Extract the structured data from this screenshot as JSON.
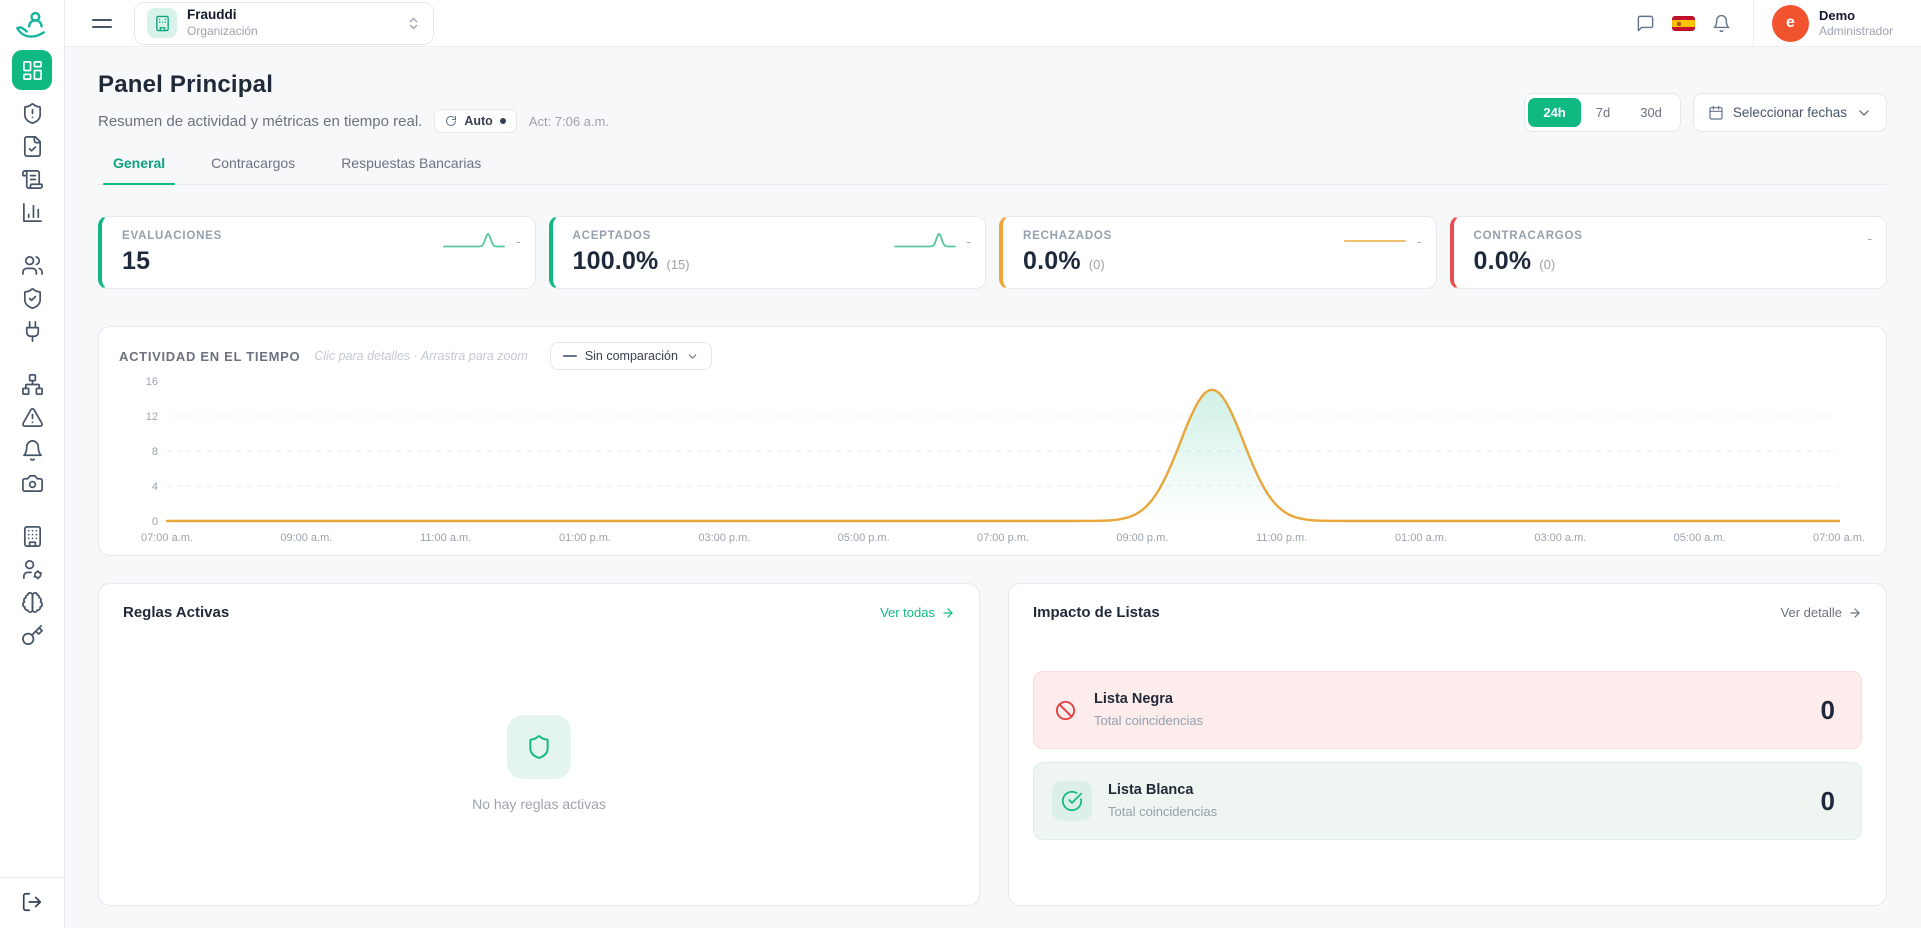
{
  "topbar": {
    "org_name": "Frauddi",
    "org_type": "Organización",
    "user_name": "Demo",
    "user_role": "Administrador",
    "avatar_letter": "e"
  },
  "sidebar": {
    "items": [
      "dashboard",
      "shield-alert",
      "file-check",
      "scroll-rules",
      "bar-chart",
      "users",
      "shield-check",
      "plug",
      "sitemap",
      "alert-triangle",
      "bell",
      "camera",
      "building",
      "user-gear",
      "brain",
      "key"
    ],
    "bottom": "logout"
  },
  "header": {
    "title": "Panel Principal",
    "subtitle": "Resumen de actividad y métricas en tiempo real.",
    "auto_label": "Auto",
    "updated_label": "Act: 7:06 a.m.",
    "ranges": [
      {
        "label": "24h",
        "active": true
      },
      {
        "label": "7d",
        "active": false
      },
      {
        "label": "30d",
        "active": false
      }
    ],
    "date_picker_label": "Seleccionar fechas"
  },
  "tabs": [
    {
      "label": "General",
      "active": true
    },
    {
      "label": "Contracargos",
      "active": false
    },
    {
      "label": "Respuestas Bancarias",
      "active": false
    }
  ],
  "metrics": [
    {
      "label": "EVALUACIONES",
      "value": "15",
      "sub": "",
      "trend": "-",
      "accent": "#10b981",
      "spark": "spike",
      "spark_color": "#57c69e"
    },
    {
      "label": "ACEPTADOS",
      "value": "100.0%",
      "sub": "(15)",
      "trend": "-",
      "accent": "#10b981",
      "spark": "spike",
      "spark_color": "#57c69e"
    },
    {
      "label": "RECHAZADOS",
      "value": "0.0%",
      "sub": "(0)",
      "trend": "-",
      "accent": "#f0a63c",
      "spark": "flat",
      "spark_color": "#f0c070"
    },
    {
      "label": "CONTRACARGOS",
      "value": "0.0%",
      "sub": "(0)",
      "trend": "-",
      "accent": "#e8504f",
      "spark": "none",
      "spark_color": ""
    }
  ],
  "chart_data": {
    "type": "area",
    "title": "ACTIVIDAD EN EL TIEMPO",
    "hint": "Clic para detalles · Arrastra para zoom",
    "comparison_label": "Sin comparación",
    "x_labels": [
      "07:00 a.m.",
      "09:00 a.m.",
      "11:00 a.m.",
      "01:00 p.m.",
      "03:00 p.m.",
      "05:00 p.m.",
      "07:00 p.m.",
      "09:00 p.m.",
      "11:00 p.m.",
      "01:00 a.m.",
      "03:00 a.m.",
      "05:00 a.m.",
      "07:00 a.m."
    ],
    "y_ticks": [
      0,
      4,
      8,
      12,
      16
    ],
    "ylim": [
      0,
      16
    ],
    "grid": "dashed-horizontal",
    "legend_position": "none",
    "series": [
      {
        "name": "Evaluaciones",
        "color": "#e9a63b",
        "fill": "#10b981",
        "hourly_values": [
          0,
          0,
          0,
          0,
          0,
          0,
          0,
          0,
          0,
          0,
          0,
          0,
          0,
          0,
          0,
          15,
          0,
          0,
          0,
          0,
          0,
          0,
          0,
          0,
          0
        ],
        "peak": {
          "time": "10:00 p.m.",
          "value": 15
        }
      }
    ]
  },
  "rules_card": {
    "title": "Reglas Activas",
    "link": "Ver todas",
    "empty": "No hay reglas activas"
  },
  "lists_card": {
    "title": "Impacto de Listas",
    "link": "Ver detalle",
    "items": [
      {
        "name": "Lista Negra",
        "sub": "Total coincidencias",
        "value": "0",
        "type": "black"
      },
      {
        "name": "Lista Blanca",
        "sub": "Total coincidencias",
        "value": "0",
        "type": "white"
      }
    ]
  },
  "colors": {
    "primary": "#10b981",
    "amber": "#e9a63b",
    "red": "#e8504f",
    "avatar": "#f0532e"
  }
}
